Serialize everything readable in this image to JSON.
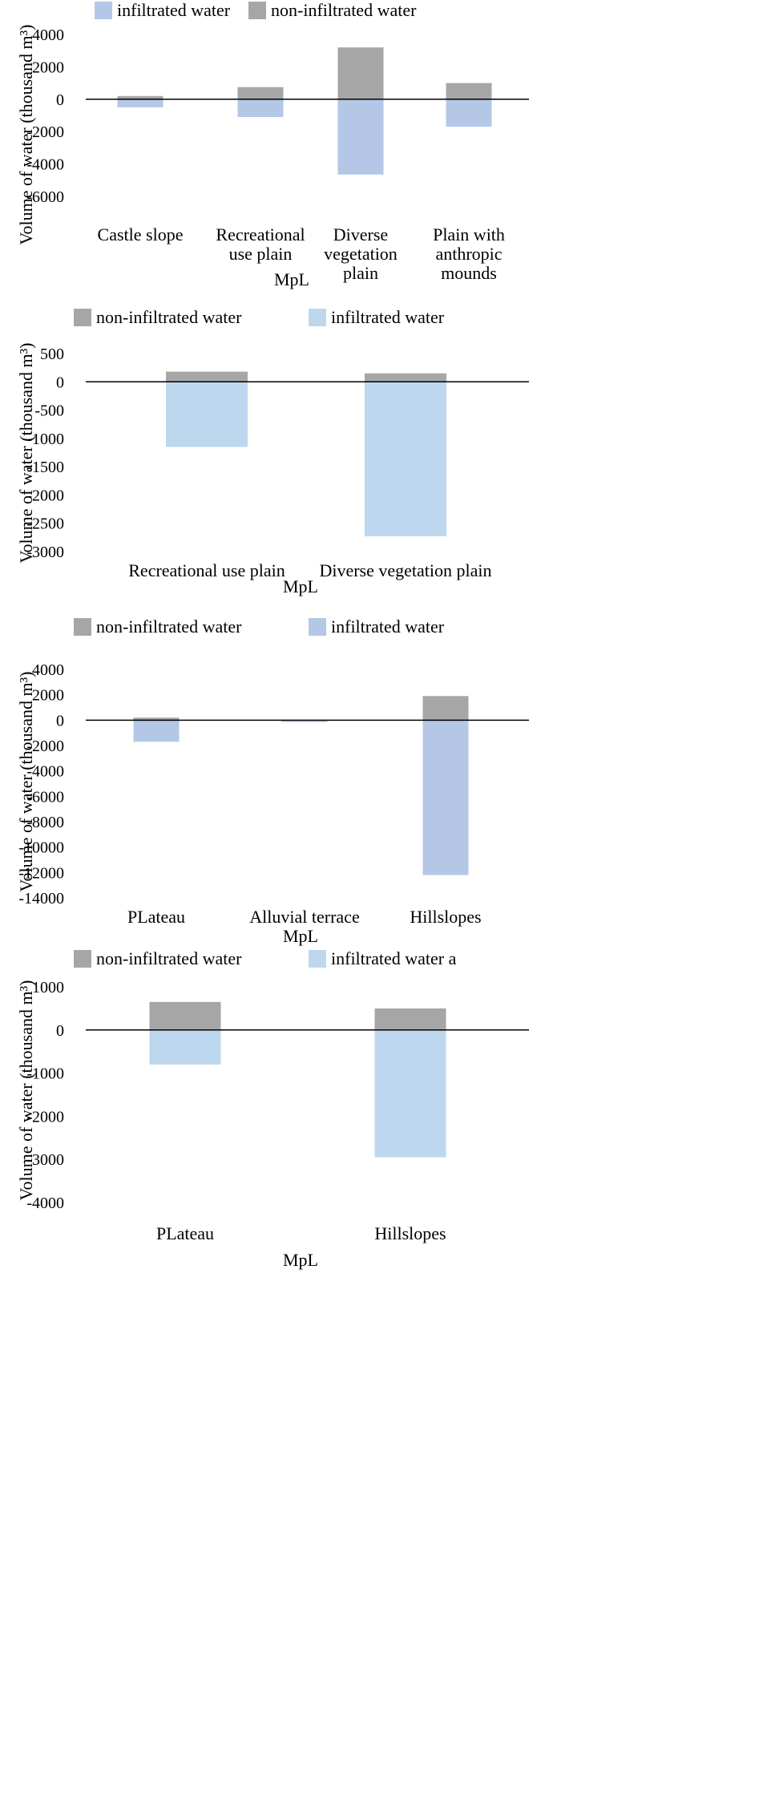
{
  "colors": {
    "grey": "#a6a6a6",
    "blue_mid": "#b4c7e7",
    "blue_light": "#bdd7ee",
    "axis": "#000000"
  },
  "chart_data": [
    {
      "type": "bar",
      "stacked": true,
      "title": "",
      "xlabel": "MpL",
      "ylabel": "Volume of water  (thousand m³)",
      "ylim": [
        -6000,
        4000
      ],
      "yticks": [
        4000,
        2000,
        0,
        -2000,
        -4000,
        -6000
      ],
      "grid": false,
      "legend_position": "top",
      "categories": [
        [
          "Castle slope"
        ],
        [
          "Recreational",
          "use plain"
        ],
        [
          "Diverse",
          "vegetation",
          "plain"
        ],
        [
          "Plain with",
          "anthropic",
          "mounds"
        ]
      ],
      "series": [
        {
          "name": "infiltrated water",
          "color": "#b4c7e7",
          "values": [
            -500,
            -1100,
            -4650,
            -1700
          ]
        },
        {
          "name": "non-infiltrated water",
          "color": "#a6a6a6",
          "values": [
            200,
            750,
            3200,
            1000
          ]
        }
      ]
    },
    {
      "type": "bar",
      "stacked": true,
      "title": "",
      "xlabel": "MpL",
      "ylabel": "Volume of water  (thousand m³)",
      "ylim": [
        -3000,
        500
      ],
      "yticks": [
        500,
        0,
        -500,
        -1000,
        -1500,
        -2000,
        -2500,
        -3000
      ],
      "grid": false,
      "legend_position": "top",
      "categories": [
        [
          "Recreational use plain"
        ],
        [
          "Diverse vegetation plain"
        ]
      ],
      "series": [
        {
          "name": "non-infiltrated water",
          "color": "#a6a6a6",
          "values": [
            180,
            150
          ]
        },
        {
          "name": "infiltrated water",
          "color": "#bdd7ee",
          "values": [
            -1150,
            -2730
          ]
        }
      ]
    },
    {
      "type": "bar",
      "stacked": true,
      "title": "",
      "xlabel": "MpL",
      "ylabel": "Volume of water  (thousand m³)",
      "ylim": [
        -14000,
        4000
      ],
      "yticks": [
        4000,
        2000,
        0,
        -2000,
        -4000,
        -6000,
        -8000,
        -10000,
        -12000,
        -14000
      ],
      "grid": false,
      "legend_position": "top",
      "categories": [
        [
          "PLateau"
        ],
        [
          "Alluvial terrace"
        ],
        [
          "Hillslopes"
        ]
      ],
      "series": [
        {
          "name": "non-infiltrated water",
          "color": "#a6a6a6",
          "values": [
            200,
            30,
            1900
          ]
        },
        {
          "name": "infiltrated water",
          "color": "#b4c7e7",
          "values": [
            -1700,
            -150,
            -12200
          ]
        }
      ]
    },
    {
      "type": "bar",
      "stacked": true,
      "title": "",
      "xlabel": "MpL",
      "ylabel": "Volume of water  (thousand m³)",
      "ylim": [
        -4000,
        1000
      ],
      "yticks": [
        1000,
        0,
        -1000,
        -2000,
        -3000,
        -4000
      ],
      "grid": false,
      "legend_position": "top",
      "categories": [
        [
          "PLateau"
        ],
        [
          "Hillslopes"
        ]
      ],
      "series": [
        {
          "name": "non-infiltrated water",
          "color": "#a6a6a6",
          "values": [
            650,
            500
          ]
        },
        {
          "name": "infiltrated water a",
          "color": "#bdd7ee",
          "values": [
            -800,
            -2950
          ]
        }
      ]
    }
  ]
}
